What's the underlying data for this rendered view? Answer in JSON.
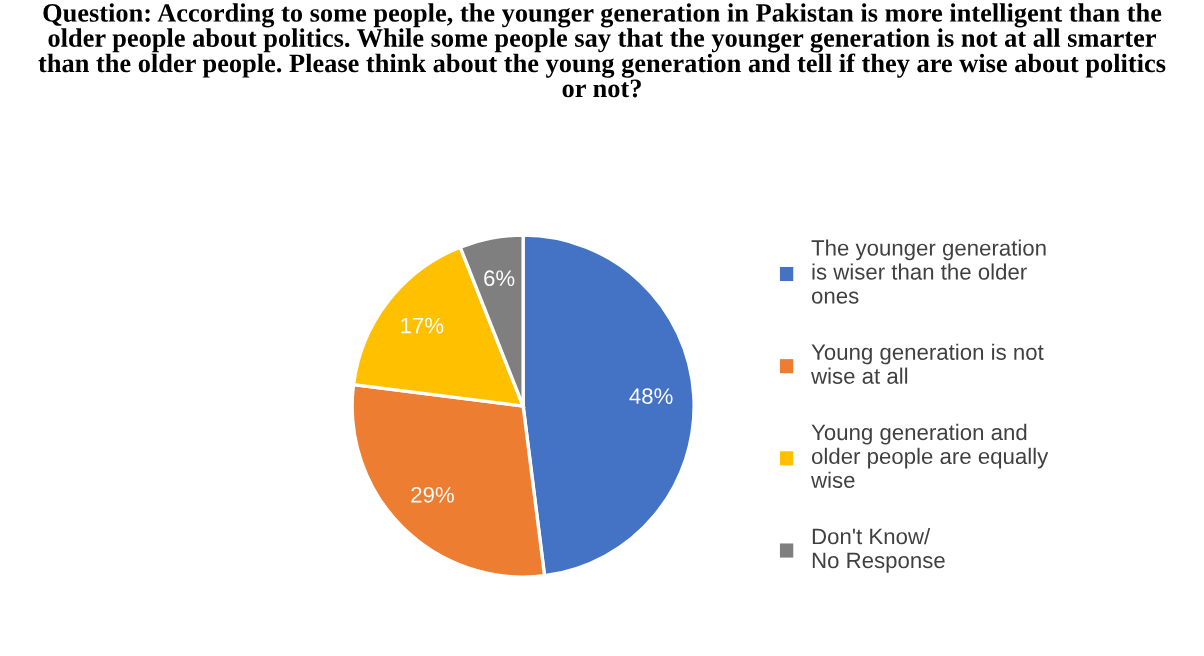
{
  "chart_data": {
    "type": "pie",
    "title": "Question: According to some people, the younger generation in Pakistan is more intelligent than the\nolder people about politics. While some people say that the younger generation is not at all smarter\nthan the older people. Please think about the young generation and tell if they are wise about politics\nor not?",
    "categories": [
      "The younger generation\nis wiser than the older\nones",
      "Young generation is not\nwise at all",
      "Young generation and\nolder people are equally\nwise",
      "Don't Know/\nNo Response"
    ],
    "values": [
      48,
      29,
      17,
      6
    ],
    "colors": [
      "#4472c4",
      "#ed7d31",
      "#ffc000",
      "#7f7f7f"
    ],
    "value_labels": [
      "48%",
      "29%",
      "17%",
      "6%"
    ],
    "legend": "right"
  }
}
